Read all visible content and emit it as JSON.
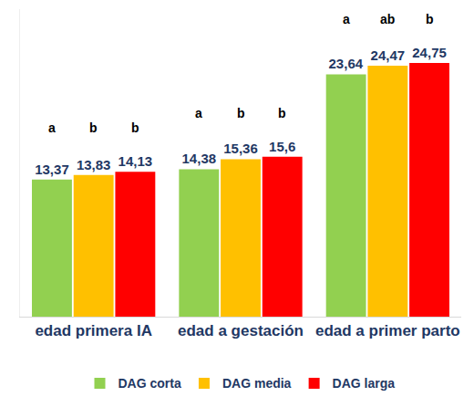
{
  "chart_data": {
    "type": "bar",
    "categories": [
      "edad primera IA",
      "edad a gestación",
      "edad a primer parto"
    ],
    "series": [
      {
        "name": "DAG corta",
        "color": "#92d050",
        "values": [
          13.37,
          14.38,
          23.64
        ],
        "value_labels": [
          "13,37",
          "14,38",
          "23,64"
        ],
        "annotations": [
          "a",
          "a",
          "a"
        ]
      },
      {
        "name": "DAG media",
        "color": "#ffc000",
        "values": [
          13.83,
          15.36,
          24.47
        ],
        "value_labels": [
          "13,83",
          "15,36",
          "24,47"
        ],
        "annotations": [
          "b",
          "b",
          "ab"
        ]
      },
      {
        "name": "DAG larga",
        "color": "#ff0000",
        "values": [
          14.13,
          15.6,
          24.75
        ],
        "value_labels": [
          "14,13",
          "15,6",
          "24,75"
        ],
        "annotations": [
          "b",
          "b",
          "b"
        ]
      }
    ],
    "ylim": [
      0,
      30
    ],
    "yticks": [],
    "grid": false,
    "legend": "bottom",
    "data_labels": true,
    "tick_labels": "x"
  }
}
